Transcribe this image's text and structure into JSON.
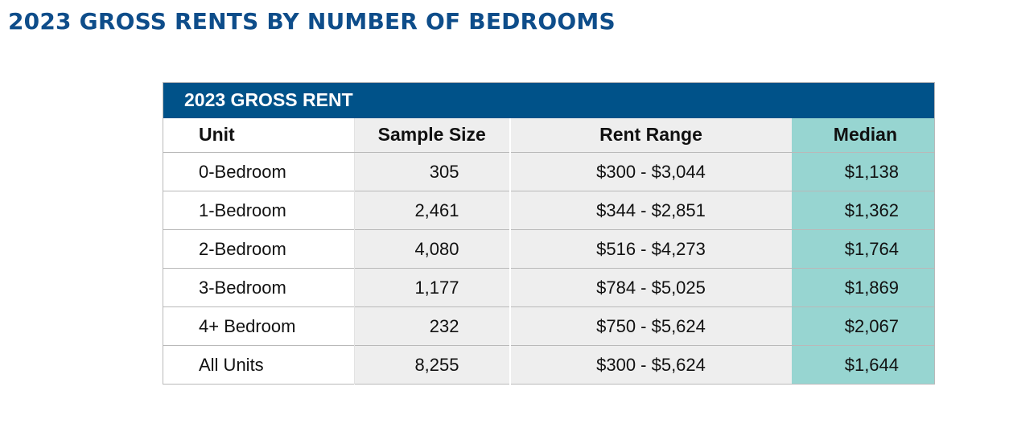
{
  "title": "2023 GROSS RENTS BY NUMBER OF BEDROOMS",
  "table": {
    "caption": "2023 GROSS RENT",
    "headers": {
      "unit": "Unit",
      "sample_size": "Sample Size",
      "rent_range": "Rent Range",
      "median": "Median"
    },
    "rows": [
      {
        "unit": "0-Bedroom",
        "sample_size": "305",
        "rent_range": "$300 - $3,044",
        "median": "$1,138"
      },
      {
        "unit": "1-Bedroom",
        "sample_size": "2,461",
        "rent_range": "$344 - $2,851",
        "median": "$1,362"
      },
      {
        "unit": "2-Bedroom",
        "sample_size": "4,080",
        "rent_range": "$516 - $4,273",
        "median": "$1,764"
      },
      {
        "unit": "3-Bedroom",
        "sample_size": "1,177",
        "rent_range": "$784 - $5,025",
        "median": "$1,869"
      },
      {
        "unit": "4+ Bedroom",
        "sample_size": "232",
        "rent_range": "$750 - $5,624",
        "median": "$2,067"
      },
      {
        "unit": "All Units",
        "sample_size": "8,255",
        "rent_range": "$300 - $5,624",
        "median": "$1,644"
      }
    ]
  },
  "colors": {
    "title": "#0e4d8a",
    "caption_bg": "#005289",
    "data_bg": "#eeeeee",
    "median_bg": "#97d5d1"
  }
}
